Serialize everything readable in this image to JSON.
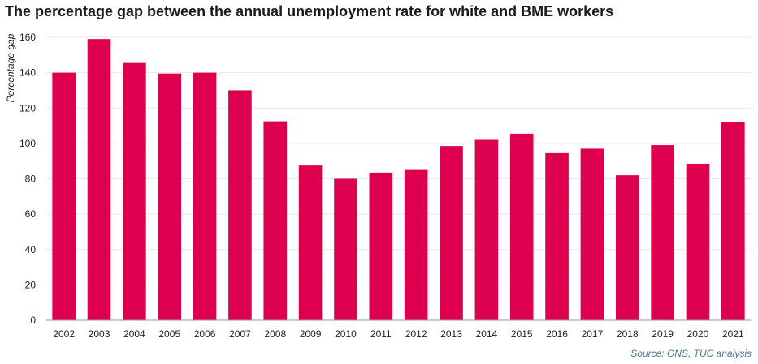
{
  "title": "The percentage gap between the annual unemployment rate for white and BME workers",
  "source": "Source: ONS, TUC analysis",
  "colors": {
    "bar": "#dc004e",
    "grid": "#e8e8e8",
    "axis": "#999999",
    "text": "#222222"
  },
  "chart_data": {
    "type": "bar",
    "title": "The percentage gap between the annual unemployment rate for white and BME workers",
    "xlabel": "",
    "ylabel": "Percentage gap",
    "ylim": [
      0,
      160
    ],
    "yticks": [
      0,
      20,
      40,
      60,
      80,
      100,
      120,
      140,
      160
    ],
    "grid": true,
    "categories": [
      "2002",
      "2003",
      "2004",
      "2005",
      "2006",
      "2007",
      "2008",
      "2009",
      "2010",
      "2011",
      "2012",
      "2013",
      "2014",
      "2015",
      "2016",
      "2017",
      "2018",
      "2019",
      "2020",
      "2021"
    ],
    "values": [
      140,
      159,
      145.5,
      139.5,
      140,
      130,
      112.5,
      87.5,
      80,
      83.5,
      85,
      98.5,
      102,
      105.5,
      94.5,
      97,
      82,
      99,
      88.5,
      112
    ]
  }
}
